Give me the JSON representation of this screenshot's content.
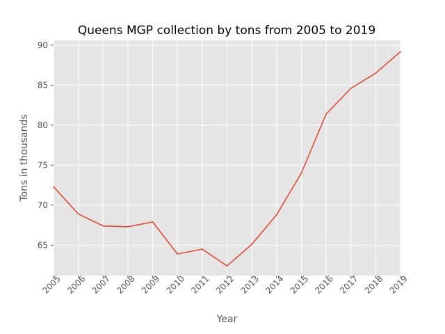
{
  "chart_data": {
    "type": "line",
    "title": "Queens MGP collection by tons from 2005 to 2019",
    "xlabel": "Year",
    "ylabel": "Tons in thousands",
    "x": [
      2005,
      2006,
      2007,
      2008,
      2009,
      2010,
      2011,
      2012,
      2013,
      2014,
      2015,
      2016,
      2017,
      2018,
      2019
    ],
    "x_tick_labels": [
      "2005",
      "2006",
      "2007",
      "2008",
      "2009",
      "2010",
      "2011",
      "2012",
      "2013",
      "2014",
      "2015",
      "2016",
      "2017",
      "2018",
      "2019"
    ],
    "y_ticks": [
      65,
      70,
      75,
      80,
      85,
      90
    ],
    "y_tick_labels": [
      "65",
      "70",
      "75",
      "80",
      "85",
      "90"
    ],
    "xlim": [
      2005,
      2019
    ],
    "ylim": [
      61.2,
      90.6
    ],
    "grid": true,
    "legend": "top-right",
    "series": [
      {
        "color": "#e24a33",
        "values": [
          72.3,
          68.9,
          67.4,
          67.3,
          67.9,
          63.9,
          64.5,
          62.4,
          65.1,
          68.8,
          74.0,
          81.4,
          84.6,
          86.5,
          89.2
        ]
      }
    ],
    "colors": {
      "plot_background": "#e5e5e5",
      "grid": "#ffffff",
      "text": "#555555",
      "title": "#000000"
    }
  }
}
